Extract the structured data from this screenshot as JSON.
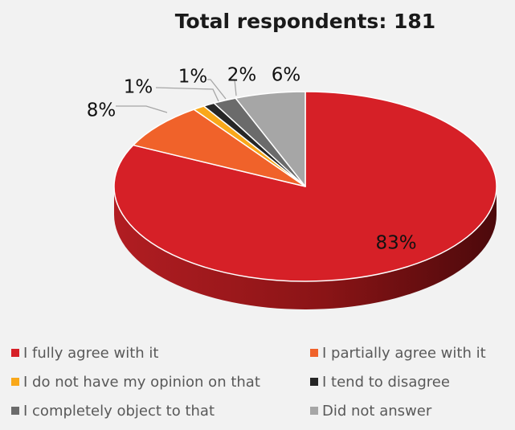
{
  "chart_data": {
    "type": "pie",
    "title": "Total respondents: 181",
    "series": [
      {
        "name": "",
        "values": [
          83,
          8,
          1,
          1,
          2,
          6
        ]
      }
    ],
    "categories": [
      "I fully agree with it",
      "I partially agree with it",
      "I do not have my opinion on that",
      "I tend to disagree",
      "I completely object to that",
      "Did not answer"
    ],
    "data_labels": [
      "83%",
      "8%",
      "1%",
      "1%",
      "2%",
      "6%"
    ],
    "colors": [
      "#d62027",
      "#f0622a",
      "#f9a81a",
      "#262626",
      "#6b6b6b",
      "#a6a6a6"
    ],
    "legend_position": "bottom",
    "three_d": true
  }
}
